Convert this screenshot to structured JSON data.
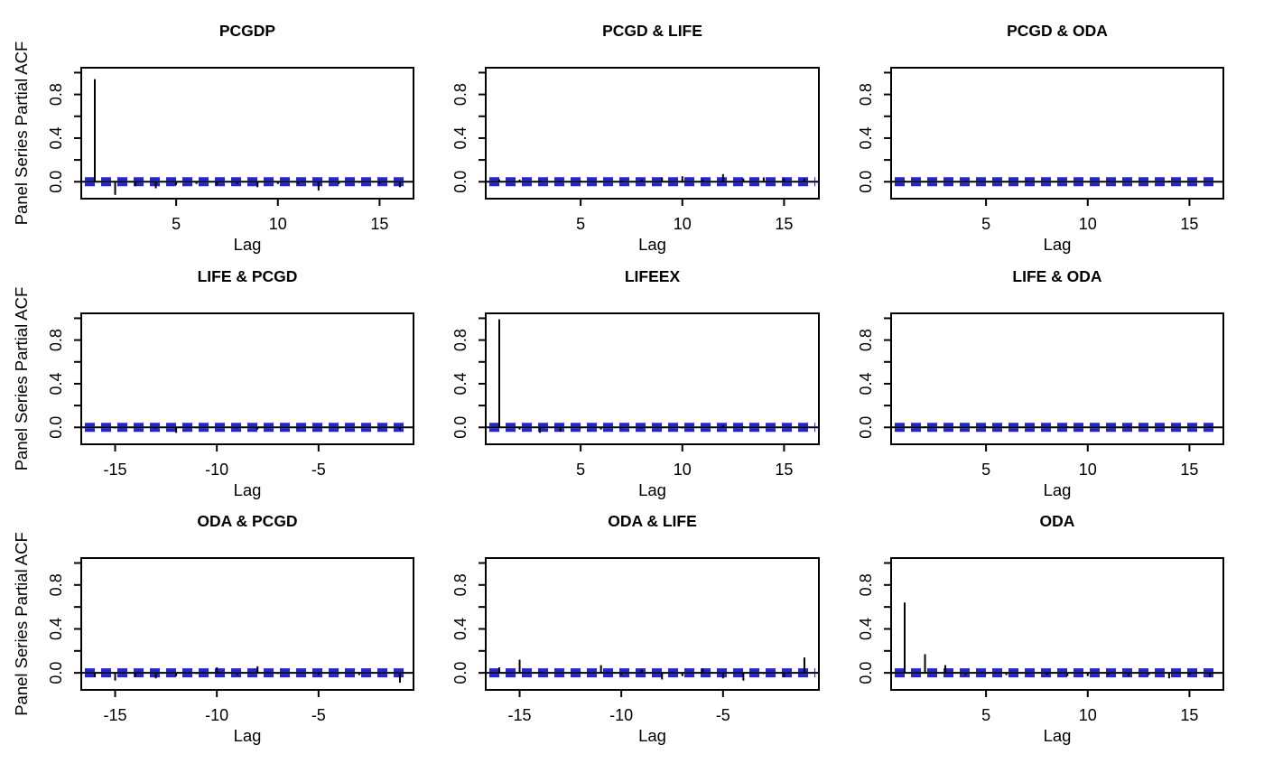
{
  "chart_common": {
    "xlabel": "Lag",
    "ylabel": "Panel Series Partial ACF",
    "y_tick_values": [
      0,
      0.2,
      0.4,
      0.6,
      0.8,
      1.0
    ],
    "y_labeled_tick_values": [
      0,
      0.4,
      0.8
    ],
    "y_tick_labels": [
      "0.0",
      "0.4",
      "0.8"
    ],
    "ylim": [
      -0.155,
      1.045
    ],
    "confidence_level": 0.025,
    "grid": "off",
    "legend": "none",
    "colors": {
      "spike": "#000000",
      "axis": "#000000",
      "ci_line": "#2222e2",
      "background": "#ffffff"
    }
  },
  "chart_data": [
    {
      "type": "bar",
      "title": "PCGDP",
      "x": [
        1,
        2,
        3,
        4,
        5,
        6,
        7,
        8,
        9,
        10,
        11,
        12,
        13,
        14,
        15,
        16
      ],
      "values": [
        0.94,
        -0.12,
        -0.04,
        -0.06,
        -0.03,
        -0.02,
        -0.03,
        -0.02,
        -0.05,
        -0.02,
        -0.02,
        -0.08,
        -0.02,
        -0.01,
        -0.02,
        -0.05
      ],
      "x_ticks": [
        5,
        10,
        15
      ],
      "x_tick_labels": [
        "5",
        "10",
        "15"
      ]
    },
    {
      "type": "bar",
      "title": "PCGD & LIFE",
      "x": [
        1,
        2,
        3,
        4,
        5,
        6,
        7,
        8,
        9,
        10,
        11,
        12,
        13,
        14,
        15,
        16
      ],
      "values": [
        0.02,
        0.02,
        0.01,
        0.01,
        0.01,
        0.01,
        0.01,
        0.02,
        0.04,
        0.05,
        0.02,
        0.07,
        0.03,
        0.04,
        0.03,
        0.03
      ],
      "x_ticks": [
        5,
        10,
        15
      ],
      "x_tick_labels": [
        "5",
        "10",
        "15"
      ]
    },
    {
      "type": "bar",
      "title": "PCGD & ODA",
      "x": [
        1,
        2,
        3,
        4,
        5,
        6,
        7,
        8,
        9,
        10,
        11,
        12,
        13,
        14,
        15,
        16
      ],
      "values": [
        0.01,
        0,
        0,
        0.01,
        0,
        0,
        0.01,
        0,
        0,
        0,
        0.01,
        0,
        0,
        0.01,
        0,
        0
      ],
      "x_ticks": [
        5,
        10,
        15
      ],
      "x_tick_labels": [
        "5",
        "10",
        "15"
      ]
    },
    {
      "type": "bar",
      "title": "LIFE & PCGD",
      "x": [
        -16,
        -15,
        -14,
        -13,
        -12,
        -11,
        -10,
        -9,
        -8,
        -7,
        -6,
        -5,
        -4,
        -3,
        -2,
        -1
      ],
      "values": [
        0,
        -0.01,
        0,
        -0.01,
        -0.05,
        -0.01,
        0,
        -0.01,
        -0.02,
        0,
        -0.01,
        0,
        -0.01,
        0,
        -0.01,
        -0.02
      ],
      "x_ticks": [
        -15,
        -10,
        -5
      ],
      "x_tick_labels": [
        "-15",
        "-10",
        "-5"
      ]
    },
    {
      "type": "bar",
      "title": "LIFEEX",
      "x": [
        1,
        2,
        3,
        4,
        5,
        6,
        7,
        8,
        9,
        10,
        11,
        12,
        13,
        14,
        15,
        16
      ],
      "values": [
        0.99,
        -0.02,
        -0.05,
        -0.04,
        -0.01,
        -0.02,
        -0.01,
        -0.01,
        -0.01,
        -0.01,
        0,
        0.02,
        0.01,
        0,
        0,
        -0.01
      ],
      "x_ticks": [
        5,
        10,
        15
      ],
      "x_tick_labels": [
        "5",
        "10",
        "15"
      ]
    },
    {
      "type": "bar",
      "title": "LIFE & ODA",
      "x": [
        1,
        2,
        3,
        4,
        5,
        6,
        7,
        8,
        9,
        10,
        11,
        12,
        13,
        14,
        15,
        16
      ],
      "values": [
        0,
        0.01,
        0,
        0,
        0.01,
        0,
        0,
        0,
        0.01,
        0,
        0,
        0.01,
        0,
        0,
        0,
        0.01
      ],
      "x_ticks": [
        5,
        10,
        15
      ],
      "x_tick_labels": [
        "5",
        "10",
        "15"
      ]
    },
    {
      "type": "bar",
      "title": "ODA & PCGD",
      "x": [
        -16,
        -15,
        -14,
        -13,
        -12,
        -11,
        -10,
        -9,
        -8,
        -7,
        -6,
        -5,
        -4,
        -3,
        -2,
        -1
      ],
      "values": [
        -0.04,
        -0.07,
        -0.035,
        -0.05,
        -0.03,
        -0.01,
        0.05,
        -0.02,
        0.06,
        -0.01,
        0,
        -0.02,
        -0.01,
        -0.02,
        -0.01,
        -0.09
      ],
      "x_ticks": [
        -15,
        -10,
        -5
      ],
      "x_tick_labels": [
        "-15",
        "-10",
        "-5"
      ]
    },
    {
      "type": "bar",
      "title": "ODA & LIFE",
      "x": [
        -16,
        -15,
        -14,
        -13,
        -12,
        -11,
        -10,
        -9,
        -8,
        -7,
        -6,
        -5,
        -4,
        -3,
        -2,
        -1
      ],
      "values": [
        0.05,
        0.12,
        0.01,
        0,
        0.01,
        0.07,
        -0.02,
        0.03,
        -0.06,
        -0.03,
        0.04,
        -0.05,
        -0.07,
        -0.01,
        -0.04,
        0.14
      ],
      "x_ticks": [
        -15,
        -10,
        -5
      ],
      "x_tick_labels": [
        "-15",
        "-10",
        "-5"
      ]
    },
    {
      "type": "bar",
      "title": "ODA",
      "x": [
        1,
        2,
        3,
        4,
        5,
        6,
        7,
        8,
        9,
        10,
        11,
        12,
        13,
        14,
        15,
        16
      ],
      "values": [
        0.64,
        0.17,
        0.07,
        -0.02,
        -0.01,
        -0.02,
        -0.01,
        -0.02,
        -0.03,
        -0.03,
        -0.02,
        -0.03,
        -0.02,
        -0.05,
        -0.02,
        -0.04
      ],
      "x_ticks": [
        5,
        10,
        15
      ],
      "x_tick_labels": [
        "5",
        "10",
        "15"
      ]
    }
  ]
}
